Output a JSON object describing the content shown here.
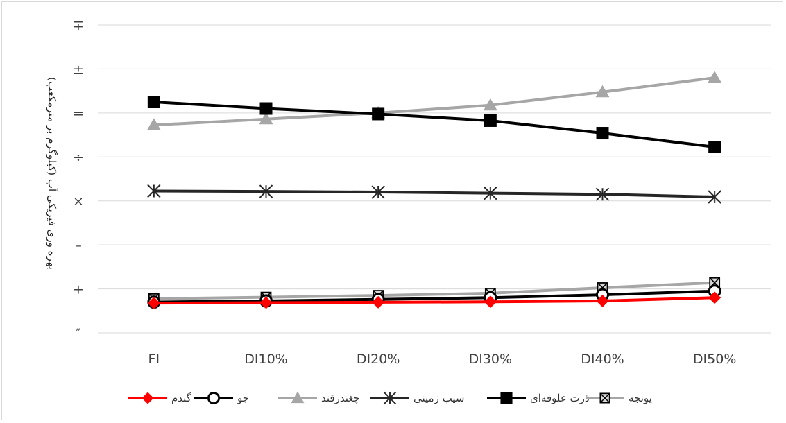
{
  "chart_data": {
    "type": "line",
    "categories": [
      "FI",
      "DI10%",
      "DI20%",
      "DI30%",
      "DI40%",
      "DI50%"
    ],
    "ylabel": "بهره وری فیزیکی آب (کیلوگرم بر مترمکعب)",
    "xlabel": "",
    "y_tick_labels": [
      "″",
      "+",
      "–",
      "×",
      "÷",
      "=",
      "±",
      "∓"
    ],
    "ylim": [
      0,
      14
    ],
    "grid": true,
    "legend_position": "bottom",
    "series": [
      {
        "name": "گندم",
        "color": "#ff0000",
        "marker": "diamond",
        "values": [
          1.35,
          1.37,
          1.39,
          1.41,
          1.45,
          1.6
        ]
      },
      {
        "name": "جو",
        "color": "#000000",
        "marker": "circle-open",
        "values": [
          1.4,
          1.45,
          1.52,
          1.6,
          1.73,
          1.9
        ]
      },
      {
        "name": "چغندرقند",
        "color": "#a6a6a6",
        "marker": "triangle",
        "values": [
          9.45,
          9.72,
          10.0,
          10.35,
          10.95,
          11.6
        ]
      },
      {
        "name": "سیب زمینی",
        "color": "#262626",
        "marker": "star",
        "values": [
          6.45,
          6.43,
          6.4,
          6.35,
          6.3,
          6.18
        ]
      },
      {
        "name": "ذرت علوفه‌ای",
        "color": "#000000",
        "marker": "square",
        "values": [
          10.5,
          10.2,
          9.95,
          9.65,
          9.08,
          8.45
        ]
      },
      {
        "name": "یونجه",
        "color": "#a6a6a6",
        "marker": "square-x",
        "values": [
          1.55,
          1.62,
          1.7,
          1.8,
          2.05,
          2.28
        ]
      }
    ]
  }
}
